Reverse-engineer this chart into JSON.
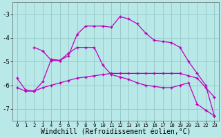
{
  "background_color": "#b8e8e8",
  "grid_color": "#99cccc",
  "line_color": "#bb00bb",
  "xlabel": "Windchill (Refroidissement éolien,°C)",
  "xlabel_fontsize": 7,
  "tick_fontsize": 6.5,
  "xlim": [
    -0.5,
    23.5
  ],
  "ylim": [
    -7.5,
    -2.5
  ],
  "yticks": [
    -7,
    -6,
    -5,
    -4,
    -3
  ],
  "xticks": [
    0,
    1,
    2,
    3,
    4,
    5,
    6,
    7,
    8,
    9,
    10,
    11,
    12,
    13,
    14,
    15,
    16,
    17,
    18,
    19,
    20,
    21,
    22,
    23
  ],
  "curve1_x": [
    0,
    1,
    2,
    3,
    4,
    5,
    6,
    7,
    8,
    9,
    10,
    11,
    12,
    13,
    14,
    15,
    16,
    17,
    18,
    19,
    20,
    21,
    22,
    23
  ],
  "curve1_y": [
    -6.1,
    -6.25,
    -6.25,
    -6.1,
    -6.0,
    -5.9,
    -5.8,
    -5.7,
    -5.65,
    -5.6,
    -5.55,
    -5.5,
    -5.5,
    -5.5,
    -5.5,
    -5.5,
    -5.5,
    -5.5,
    -5.5,
    -5.5,
    -5.6,
    -5.7,
    -6.1,
    -6.5
  ],
  "curve2_x": [
    0,
    1,
    2,
    3,
    4,
    5,
    6,
    7,
    8,
    9,
    10,
    11,
    12,
    13,
    14,
    15,
    16,
    17,
    18,
    19,
    20,
    21,
    22,
    23
  ],
  "curve2_y": [
    -5.7,
    -6.2,
    -6.25,
    -5.85,
    -4.9,
    -4.95,
    -4.65,
    -4.4,
    -4.4,
    -4.4,
    -5.15,
    -5.55,
    -5.65,
    -5.75,
    -5.9,
    -6.0,
    -6.05,
    -6.1,
    -6.1,
    -6.0,
    -5.9,
    -6.8,
    -7.05,
    -7.3
  ],
  "curve3_x": [
    2,
    3,
    4,
    5,
    6,
    7,
    8,
    9,
    10,
    11,
    12,
    13,
    14,
    15,
    16,
    17,
    18,
    19,
    20,
    21,
    22,
    23
  ],
  "curve3_y": [
    -4.4,
    -4.55,
    -4.95,
    -4.95,
    -4.75,
    -3.85,
    -3.5,
    -3.5,
    -3.5,
    -3.55,
    -3.1,
    -3.2,
    -3.4,
    -3.8,
    -4.1,
    -4.15,
    -4.2,
    -4.4,
    -5.0,
    -5.5,
    -6.0,
    -7.3
  ]
}
